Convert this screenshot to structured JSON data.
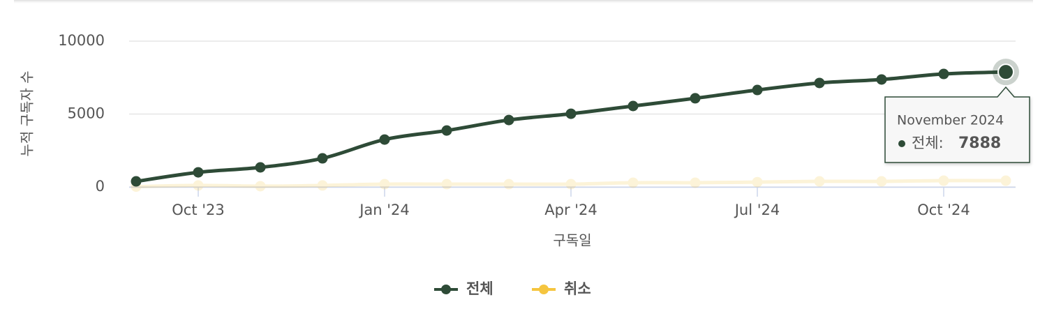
{
  "chart_data": {
    "type": "line",
    "y_label": "누적 구독자 수",
    "x_label": "구독일",
    "x": [
      "2023-09",
      "2023-10",
      "2023-11",
      "2023-12",
      "2024-01",
      "2024-02",
      "2024-03",
      "2024-04",
      "2024-05",
      "2024-06",
      "2024-07",
      "2024-08",
      "2024-09",
      "2024-10",
      "2024-11"
    ],
    "series": [
      {
        "name": "전체",
        "color": "#2e4b37",
        "values": [
          380,
          1000,
          1340,
          1960,
          3250,
          3870,
          4590,
          5020,
          5550,
          6080,
          6650,
          7130,
          7370,
          7750,
          7888
        ]
      },
      {
        "name": "취소",
        "color": "#f5c53f",
        "values": [
          20,
          100,
          50,
          100,
          190,
          190,
          190,
          190,
          290,
          290,
          330,
          380,
          380,
          430,
          430
        ]
      }
    ],
    "xlim": [
      "2023-09",
      "2024-11"
    ],
    "xticks": [
      {
        "value": "2023-10",
        "label": "Oct '23"
      },
      {
        "value": "2024-01",
        "label": "Jan '24"
      },
      {
        "value": "2024-04",
        "label": "Apr '24"
      },
      {
        "value": "2024-07",
        "label": "Jul '24"
      },
      {
        "value": "2024-10",
        "label": "Oct '24"
      }
    ],
    "ylim": [
      0,
      10000
    ],
    "yticks": [
      0,
      5000,
      10000
    ],
    "grid": true,
    "legend": "bottom",
    "tooltip": {
      "title": "November 2024",
      "label": "전체:"
    }
  }
}
